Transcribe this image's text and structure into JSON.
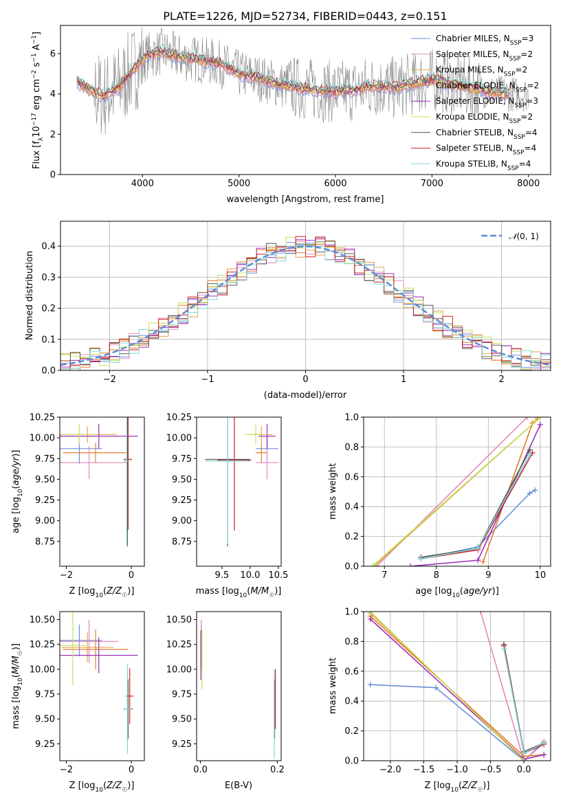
{
  "chart_data": [
    {
      "type": "line",
      "title": "PLATE=1226, MJD=52734, FIBERID=0443, z=0.151",
      "xlabel": "wavelength [Angstrom, rest frame]",
      "ylabel": "Flux [f_λ 10^-17 erg cm^-2 s^-1 A^-1]",
      "xlim": [
        3150,
        8230
      ],
      "ylim": [
        0,
        7.4
      ],
      "xticks": [
        4000,
        5000,
        6000,
        7000,
        8000
      ],
      "yticks": [
        0,
        2,
        4,
        6
      ],
      "legend_position": "right",
      "observed_color": "#808080",
      "continuum": [
        [
          3320,
          4.6
        ],
        [
          3450,
          4.2
        ],
        [
          3600,
          3.9
        ],
        [
          3750,
          4.3
        ],
        [
          3900,
          5.2
        ],
        [
          4050,
          5.9
        ],
        [
          4200,
          6.1
        ],
        [
          4400,
          5.8
        ],
        [
          4600,
          5.7
        ],
        [
          4800,
          5.5
        ],
        [
          5000,
          5.0
        ],
        [
          5200,
          4.8
        ],
        [
          5400,
          4.5
        ],
        [
          5600,
          4.3
        ],
        [
          5800,
          4.2
        ],
        [
          6000,
          4.1
        ],
        [
          6200,
          4.2
        ],
        [
          6400,
          4.4
        ],
        [
          6600,
          4.3
        ],
        [
          6800,
          4.5
        ],
        [
          7000,
          4.7
        ],
        [
          7200,
          4.5
        ],
        [
          7400,
          4.3
        ],
        [
          7600,
          4.1
        ],
        [
          7800,
          4.0
        ],
        [
          8000,
          4.0
        ]
      ],
      "series": [
        {
          "name": "Chabrier MILES, N",
          "sub": "SSP",
          "suffix": "=3",
          "color": "#6a8fd8"
        },
        {
          "name": "Salpeter MILES, N",
          "sub": "SSP",
          "suffix": "=2",
          "color": "#e588b8"
        },
        {
          "name": "Kroupa MILES, N",
          "sub": "SSP",
          "suffix": "=2",
          "color": "#e3a24a"
        },
        {
          "name": "Chabrier ELODIE, N",
          "sub": "SSP",
          "suffix": "=2",
          "color": "#e37c2a"
        },
        {
          "name": "Salpeter ELODIE, N",
          "sub": "SSP",
          "suffix": "=3",
          "color": "#9b2fb3"
        },
        {
          "name": "Kroupa ELODIE, N",
          "sub": "SSP",
          "suffix": "=2",
          "color": "#c5e05a"
        },
        {
          "name": "Chabrier STELIB, N",
          "sub": "SSP",
          "suffix": "=4",
          "color": "#555555"
        },
        {
          "name": "Salpeter STELIB, N",
          "sub": "SSP",
          "suffix": "=4",
          "color": "#c82323"
        },
        {
          "name": "Kroupa STELIB, N",
          "sub": "SSP",
          "suffix": "=4",
          "color": "#7fd6d6"
        }
      ]
    },
    {
      "type": "histogram",
      "xlabel": "(data-model)/error",
      "ylabel": "Normed distribution",
      "xlim": [
        -2.5,
        2.5
      ],
      "ylim": [
        0,
        0.48
      ],
      "xticks": [
        -2,
        -1,
        0,
        1,
        2
      ],
      "yticks": [
        0.0,
        0.1,
        0.2,
        0.3,
        0.4
      ],
      "bin_width": 0.1,
      "reference": {
        "name": "N(0,1)",
        "mean": 0,
        "sigma": 1,
        "color": "#5b8bd6"
      },
      "legend_position": "top-right"
    },
    {
      "type": "scatter",
      "panel": "age vs Z",
      "xlabel": "Z [log10(Z/Z_sun)]",
      "ylabel": "age [log10(age/yr)]",
      "xlim": [
        -2.2,
        0.4
      ],
      "ylim": [
        8.45,
        10.25
      ],
      "xticks": [
        -2,
        0
      ],
      "yticks": [
        8.75,
        9.0,
        9.25,
        9.5,
        9.75,
        10.0,
        10.25
      ],
      "points": [
        {
          "series": "Chabrier MILES",
          "x": -1.6,
          "y": 9.87,
          "xerr": 0.7,
          "yerr": 0.18,
          "color": "#6a8fd8"
        },
        {
          "series": "Salpeter MILES",
          "x": -1.3,
          "y": 9.7,
          "xerr": 1.2,
          "yerr": 0.2,
          "color": "#e588b8"
        },
        {
          "series": "Kroupa MILES",
          "x": -1.35,
          "y": 10.04,
          "xerr": 0.9,
          "yerr": 0.1,
          "color": "#e3a24a"
        },
        {
          "series": "Chabrier ELODIE",
          "x": -1.1,
          "y": 9.82,
          "xerr": 1.0,
          "yerr": 0.12,
          "color": "#e37c2a"
        },
        {
          "series": "Salpeter ELODIE",
          "x": -1.0,
          "y": 10.02,
          "xerr": 1.2,
          "yerr": 0.15,
          "color": "#9b2fb3"
        },
        {
          "series": "Kroupa ELODIE",
          "x": -1.6,
          "y": 10.04,
          "xerr": 0.55,
          "yerr": 0.12,
          "color": "#c5e05a"
        },
        {
          "series": "Chabrier STELIB",
          "x": -0.12,
          "y": 9.74,
          "xerr": 0.12,
          "yerr": 1.05,
          "color": "#555555"
        },
        {
          "series": "Salpeter STELIB",
          "x": -0.1,
          "y": 9.74,
          "xerr": 0.12,
          "yerr": 0.85,
          "color": "#c82323"
        },
        {
          "series": "Kroupa STELIB",
          "x": -0.14,
          "y": 9.72,
          "xerr": 0.1,
          "yerr": 1.0,
          "color": "#7fd6d6"
        }
      ]
    },
    {
      "type": "scatter",
      "panel": "age vs mass",
      "xlabel": "mass [log10(M/M_sun)]",
      "ylabel": "",
      "xlim": [
        9.05,
        10.55
      ],
      "ylim": [
        8.45,
        10.25
      ],
      "xticks": [
        9.5,
        10.0,
        10.5
      ],
      "yticks": [
        8.75,
        9.0,
        9.25,
        9.5,
        9.75,
        10.0,
        10.25
      ],
      "points": [
        {
          "series": "Chabrier MILES",
          "x": 10.3,
          "y": 9.87,
          "xerr": 0.2,
          "yerr": 0.18,
          "color": "#6a8fd8"
        },
        {
          "series": "Salpeter MILES",
          "x": 10.3,
          "y": 9.7,
          "xerr": 0.2,
          "yerr": 0.2,
          "color": "#e588b8"
        },
        {
          "series": "Kroupa MILES",
          "x": 10.2,
          "y": 10.04,
          "xerr": 0.2,
          "yerr": 0.1,
          "color": "#e3a24a"
        },
        {
          "series": "Chabrier ELODIE",
          "x": 10.2,
          "y": 9.82,
          "xerr": 0.1,
          "yerr": 0.12,
          "color": "#e37c2a"
        },
        {
          "series": "Salpeter ELODIE",
          "x": 10.3,
          "y": 10.02,
          "xerr": 0.15,
          "yerr": 0.15,
          "color": "#9b2fb3"
        },
        {
          "series": "Kroupa ELODIE",
          "x": 10.1,
          "y": 10.04,
          "xerr": 0.2,
          "yerr": 0.12,
          "color": "#c5e05a"
        },
        {
          "series": "Chabrier STELIB",
          "x": 9.6,
          "y": 9.74,
          "xerr": 0.4,
          "yerr": 1.05,
          "color": "#555555"
        },
        {
          "series": "Salpeter STELIB",
          "x": 9.72,
          "y": 9.73,
          "xerr": 0.3,
          "yerr": 0.85,
          "color": "#c82323"
        },
        {
          "series": "Kroupa STELIB",
          "x": 9.6,
          "y": 9.72,
          "xerr": 0.4,
          "yerr": 1.0,
          "color": "#7fd6d6"
        }
      ]
    },
    {
      "type": "line",
      "panel": "mass weight vs age",
      "xlabel": "age [log10(age/yr)]",
      "ylabel": "mass weight",
      "xlim": [
        6.6,
        10.2
      ],
      "ylim": [
        0,
        1
      ],
      "xticks": [
        7,
        8,
        9,
        10
      ],
      "yticks": [
        0.0,
        0.2,
        0.4,
        0.6,
        0.8,
        1.0
      ],
      "series": [
        {
          "name": "Chabrier MILES",
          "color": "#6a8fd8",
          "points": [
            [
              7.7,
              0.05
            ],
            [
              8.8,
              0.13
            ],
            [
              9.8,
              0.49
            ],
            [
              9.9,
              0.51
            ]
          ]
        },
        {
          "name": "Salpeter MILES",
          "color": "#e588b8",
          "points": [
            [
              6.85,
              0.0
            ],
            [
              9.75,
              1.0
            ]
          ]
        },
        {
          "name": "Kroupa MILES",
          "color": "#e3a24a",
          "points": [
            [
              6.8,
              0.0
            ],
            [
              10.0,
              1.0
            ]
          ]
        },
        {
          "name": "Chabrier ELODIE",
          "color": "#e37c2a",
          "points": [
            [
              8.9,
              0.03
            ],
            [
              9.85,
              0.96
            ],
            [
              9.95,
              0.99
            ]
          ]
        },
        {
          "name": "Salpeter ELODIE",
          "color": "#9b2fb3",
          "points": [
            [
              7.5,
              0.0
            ],
            [
              8.8,
              0.04
            ],
            [
              10.0,
              0.95
            ]
          ]
        },
        {
          "name": "Kroupa ELODIE",
          "color": "#c5e05a",
          "points": [
            [
              6.8,
              0.01
            ],
            [
              10.0,
              1.0
            ]
          ]
        },
        {
          "name": "Chabrier STELIB",
          "color": "#555555",
          "points": [
            [
              7.7,
              0.06
            ],
            [
              8.8,
              0.12
            ],
            [
              9.8,
              0.78
            ]
          ]
        },
        {
          "name": "Salpeter STELIB",
          "color": "#c82323",
          "points": [
            [
              7.7,
              0.05
            ],
            [
              8.8,
              0.11
            ],
            [
              9.85,
              0.76
            ]
          ]
        },
        {
          "name": "Kroupa STELIB",
          "color": "#7fd6d6",
          "points": [
            [
              7.7,
              0.05
            ],
            [
              8.8,
              0.12
            ],
            [
              9.8,
              0.75
            ]
          ]
        }
      ]
    },
    {
      "type": "scatter",
      "panel": "mass vs Z",
      "xlabel": "Z [log10(Z/Z_sun)]",
      "ylabel": "mass [log10(M/M_sun)]",
      "xlim": [
        -2.2,
        0.4
      ],
      "ylim": [
        9.08,
        10.58
      ],
      "xticks": [
        -2,
        0
      ],
      "yticks": [
        9.25,
        9.5,
        9.75,
        10.0,
        10.25,
        10.5
      ],
      "points": [
        {
          "series": "Chabrier MILES",
          "x": -1.6,
          "y": 10.29,
          "xerr": 0.7,
          "yerr": 0.16,
          "color": "#6a8fd8"
        },
        {
          "series": "Salpeter MILES",
          "x": -1.3,
          "y": 10.28,
          "xerr": 0.9,
          "yerr": 0.22,
          "color": "#e588b8"
        },
        {
          "series": "Kroupa MILES",
          "x": -1.35,
          "y": 10.22,
          "xerr": 0.8,
          "yerr": 0.15,
          "color": "#e3a24a"
        },
        {
          "series": "Chabrier ELODIE",
          "x": -1.1,
          "y": 10.2,
          "xerr": 1.0,
          "yerr": 0.2,
          "color": "#e37c2a"
        },
        {
          "series": "Salpeter ELODIE",
          "x": -1.0,
          "y": 10.14,
          "xerr": 1.2,
          "yerr": 0.18,
          "color": "#9b2fb3"
        },
        {
          "series": "Kroupa ELODIE",
          "x": -1.8,
          "y": 10.24,
          "xerr": 0.4,
          "yerr": 0.4,
          "color": "#c5e05a"
        },
        {
          "series": "Chabrier STELIB",
          "x": -0.1,
          "y": 9.6,
          "xerr": 0.15,
          "yerr": 0.3,
          "color": "#555555"
        },
        {
          "series": "Salpeter STELIB",
          "x": -0.05,
          "y": 9.73,
          "xerr": 0.12,
          "yerr": 0.28,
          "color": "#c82323"
        },
        {
          "series": "Kroupa STELIB",
          "x": -0.12,
          "y": 9.6,
          "xerr": 0.12,
          "yerr": 0.45,
          "color": "#7fd6d6"
        }
      ]
    },
    {
      "type": "scatter",
      "panel": "mass vs E(B-V)",
      "xlabel": "E(B-V)",
      "ylabel": "",
      "xlim": [
        -0.01,
        0.21
      ],
      "ylim": [
        9.08,
        10.58
      ],
      "xticks": [
        0.0,
        0.2
      ],
      "yticks": [
        9.25,
        9.5,
        9.75,
        10.0,
        10.25,
        10.5
      ],
      "points": [
        {
          "series": "Chabrier MILES",
          "x": 0.002,
          "y": 10.29,
          "yerr": 0.16,
          "color": "#6a8fd8"
        },
        {
          "series": "Salpeter MILES",
          "x": 0.002,
          "y": 10.28,
          "yerr": 0.22,
          "color": "#e588b8"
        },
        {
          "series": "Kroupa MILES",
          "x": 0.002,
          "y": 10.22,
          "yerr": 0.15,
          "color": "#e3a24a"
        },
        {
          "series": "Chabrier ELODIE",
          "x": 0.003,
          "y": 10.2,
          "yerr": 0.2,
          "color": "#e37c2a"
        },
        {
          "series": "Salpeter ELODIE",
          "x": 0.001,
          "y": 10.14,
          "yerr": 0.25,
          "color": "#9b2fb3"
        },
        {
          "series": "Kroupa ELODIE",
          "x": 0.004,
          "y": 10.1,
          "yerr": 0.3,
          "color": "#c5e05a"
        },
        {
          "series": "Chabrier STELIB",
          "x": 0.193,
          "y": 9.6,
          "yerr": 0.3,
          "color": "#555555"
        },
        {
          "series": "Salpeter STELIB",
          "x": 0.195,
          "y": 9.7,
          "yerr": 0.3,
          "color": "#c82323"
        },
        {
          "series": "Kroupa STELIB",
          "x": 0.192,
          "y": 9.55,
          "yerr": 0.45,
          "color": "#7fd6d6"
        }
      ]
    },
    {
      "type": "line",
      "panel": "mass weight vs Z",
      "xlabel": "Z [log10(Z/Z_sun)]",
      "ylabel": "mass weight",
      "xlim": [
        -2.4,
        0.4
      ],
      "ylim": [
        0,
        1
      ],
      "xticks": [
        -2.0,
        -1.5,
        -1.0,
        -0.5,
        0.0
      ],
      "yticks": [
        0.0,
        0.2,
        0.4,
        0.6,
        0.8,
        1.0
      ],
      "series": [
        {
          "name": "Chabrier MILES",
          "color": "#6a8fd8",
          "points": [
            [
              -2.3,
              0.51
            ],
            [
              -1.32,
              0.49
            ],
            [
              0.0,
              0.0
            ],
            [
              0.3,
              0.12
            ]
          ]
        },
        {
          "name": "Salpeter MILES",
          "color": "#e588b8",
          "points": [
            [
              -0.65,
              1.0
            ],
            [
              0.0,
              0.0
            ],
            [
              0.3,
              0.13
            ]
          ]
        },
        {
          "name": "Kroupa MILES",
          "color": "#e3a24a",
          "points": [
            [
              -2.3,
              0.99
            ],
            [
              0.0,
              0.01
            ]
          ]
        },
        {
          "name": "Chabrier ELODIE",
          "color": "#e37c2a",
          "points": [
            [
              -2.3,
              0.97
            ],
            [
              0.0,
              0.03
            ],
            [
              0.3,
              0.04
            ]
          ]
        },
        {
          "name": "Salpeter ELODIE",
          "color": "#9b2fb3",
          "points": [
            [
              -2.3,
              0.95
            ],
            [
              0.0,
              0.01
            ],
            [
              0.3,
              0.04
            ]
          ]
        },
        {
          "name": "Kroupa ELODIE",
          "color": "#c5e05a",
          "points": [
            [
              -2.3,
              1.0
            ],
            [
              0.0,
              0.0
            ]
          ]
        },
        {
          "name": "Chabrier STELIB",
          "color": "#555555",
          "points": [
            [
              -0.3,
              0.78
            ],
            [
              0.0,
              0.06
            ],
            [
              0.3,
              0.12
            ]
          ]
        },
        {
          "name": "Salpeter STELIB",
          "color": "#c82323",
          "points": [
            [
              -0.3,
              0.77
            ],
            [
              0.0,
              0.05
            ],
            [
              0.3,
              0.11
            ]
          ]
        },
        {
          "name": "Kroupa STELIB",
          "color": "#7fd6d6",
          "points": [
            [
              -0.3,
              0.75
            ],
            [
              0.0,
              0.05
            ],
            [
              0.3,
              0.12
            ]
          ]
        }
      ]
    }
  ]
}
